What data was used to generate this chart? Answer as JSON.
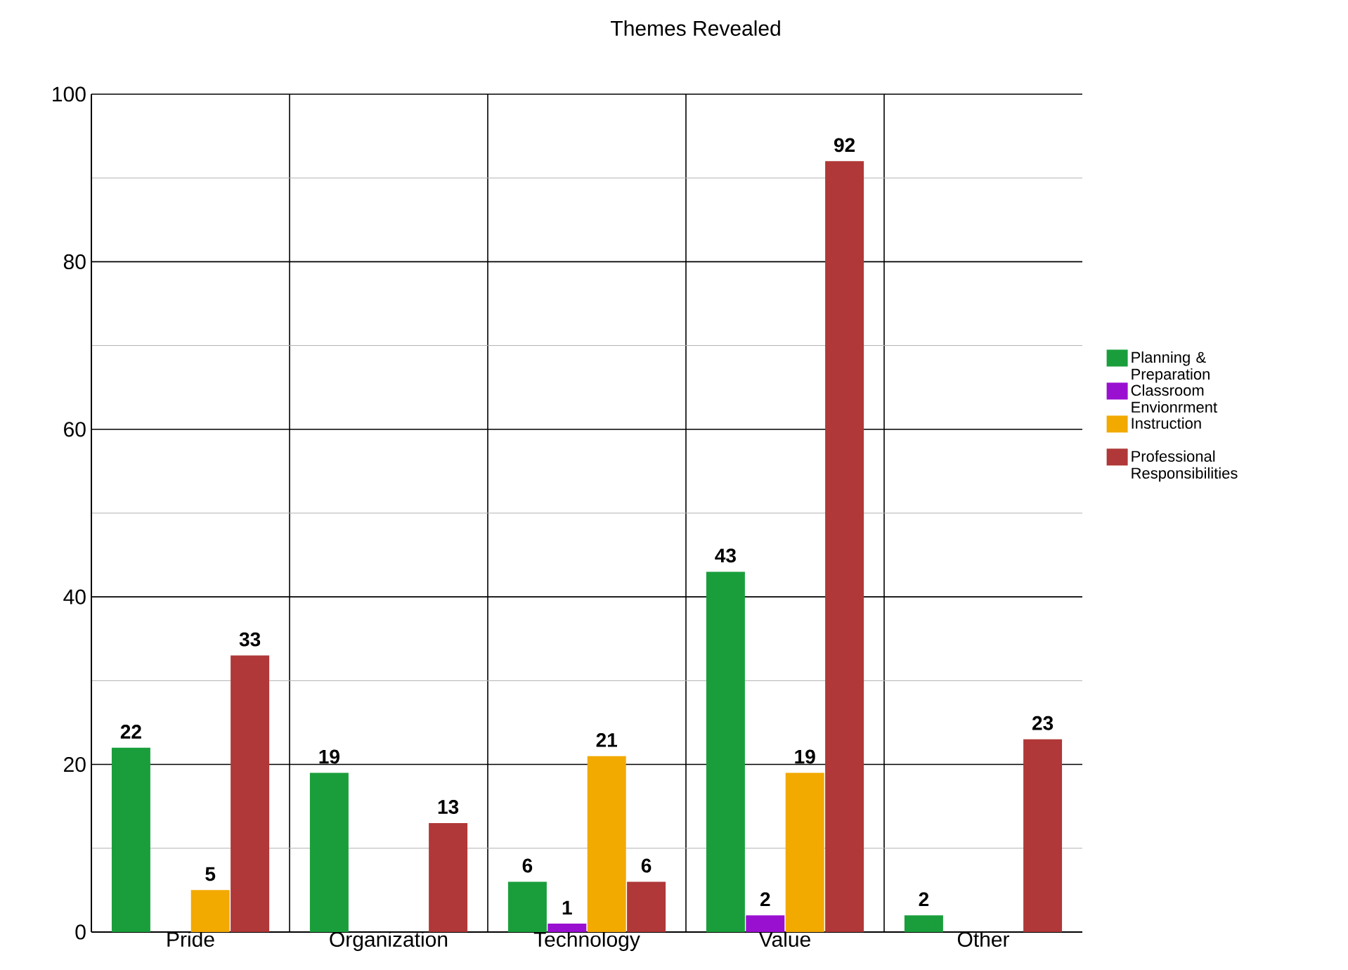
{
  "chart_data": {
    "type": "bar",
    "title": "Themes Revealed",
    "categories": [
      "Pride",
      "Organization",
      "Technology",
      "Value",
      "Other"
    ],
    "series": [
      {
        "name": "Planning & Preparation",
        "color": "#1a9e3c",
        "values": [
          22,
          19,
          6,
          43,
          2
        ]
      },
      {
        "name": "Classroom Envionrment",
        "color": "#9a10d0",
        "values": [
          null,
          null,
          1,
          2,
          null
        ]
      },
      {
        "name": "Instruction",
        "color": "#f2a900",
        "values": [
          5,
          null,
          21,
          19,
          null
        ]
      },
      {
        "name": "Professional Responsibilities",
        "color": "#b03838",
        "values": [
          33,
          13,
          6,
          92,
          23
        ]
      }
    ],
    "ylim": [
      0,
      100
    ],
    "yticks": [
      0,
      20,
      40,
      60,
      80,
      100
    ],
    "grid": true,
    "legend": "right",
    "data_labels": true
  }
}
